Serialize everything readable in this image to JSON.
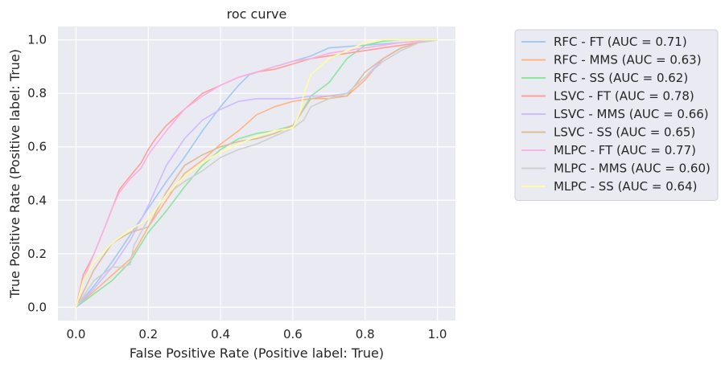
{
  "chart_data": {
    "type": "line",
    "title": "roc curve",
    "xlabel": "False Positive Rate (Positive label: True)",
    "ylabel": "True Positive Rate (Positive label: True)",
    "xlim": [
      -0.05,
      1.05
    ],
    "ylim": [
      -0.05,
      1.05
    ],
    "x_ticks": [
      0.0,
      0.2,
      0.4,
      0.6,
      0.8,
      1.0
    ],
    "y_ticks": [
      0.0,
      0.2,
      0.4,
      0.6,
      0.8,
      1.0
    ],
    "x_tick_labels": [
      "0.0",
      "0.2",
      "0.4",
      "0.6",
      "0.8",
      "1.0"
    ],
    "y_tick_labels": [
      "0.0",
      "0.2",
      "0.4",
      "0.6",
      "0.8",
      "1.0"
    ],
    "grid": true,
    "background": "#eaeaf2",
    "legend_position": "outside-right",
    "series": [
      {
        "name": "RFC - FT (AUC = 0.71)",
        "color": "#a1c9f4",
        "x": [
          0,
          0.05,
          0.1,
          0.15,
          0.2,
          0.25,
          0.3,
          0.35,
          0.4,
          0.45,
          0.48,
          0.55,
          0.6,
          0.65,
          0.7,
          0.8,
          0.9,
          1.0
        ],
        "y": [
          0,
          0.08,
          0.17,
          0.27,
          0.37,
          0.47,
          0.56,
          0.66,
          0.75,
          0.83,
          0.87,
          0.9,
          0.92,
          0.94,
          0.97,
          0.98,
          0.99,
          1.0
        ]
      },
      {
        "name": "RFC - MMS (AUC = 0.63)",
        "color": "#ffb482",
        "x": [
          0,
          0.05,
          0.1,
          0.15,
          0.2,
          0.25,
          0.3,
          0.35,
          0.4,
          0.45,
          0.5,
          0.55,
          0.6,
          0.65,
          0.7,
          0.75,
          0.8,
          0.85,
          0.9,
          0.95,
          1.0
        ],
        "y": [
          0,
          0.06,
          0.12,
          0.18,
          0.3,
          0.4,
          0.5,
          0.55,
          0.61,
          0.66,
          0.72,
          0.75,
          0.77,
          0.78,
          0.78,
          0.79,
          0.85,
          0.93,
          0.97,
          0.99,
          1.0
        ]
      },
      {
        "name": "RFC - SS (AUC = 0.62)",
        "color": "#8de5a1",
        "x": [
          0,
          0.05,
          0.1,
          0.15,
          0.2,
          0.25,
          0.3,
          0.35,
          0.4,
          0.45,
          0.5,
          0.55,
          0.6,
          0.62,
          0.65,
          0.7,
          0.75,
          0.8,
          0.85,
          0.9,
          1.0
        ],
        "y": [
          0,
          0.05,
          0.1,
          0.17,
          0.28,
          0.36,
          0.45,
          0.53,
          0.59,
          0.63,
          0.65,
          0.66,
          0.68,
          0.72,
          0.79,
          0.84,
          0.93,
          0.98,
          0.995,
          1.0,
          1.0
        ]
      },
      {
        "name": "LSVC - FT (AUC = 0.78)",
        "color": "#ff9f9b",
        "x": [
          0,
          0.02,
          0.05,
          0.08,
          0.1,
          0.12,
          0.15,
          0.18,
          0.2,
          0.22,
          0.25,
          0.3,
          0.35,
          0.4,
          0.45,
          0.5,
          0.55,
          0.6,
          0.65,
          0.7,
          0.75,
          0.8,
          0.85,
          0.9,
          0.95,
          1.0
        ],
        "y": [
          0,
          0.12,
          0.2,
          0.3,
          0.37,
          0.44,
          0.49,
          0.54,
          0.59,
          0.63,
          0.68,
          0.74,
          0.8,
          0.83,
          0.86,
          0.88,
          0.89,
          0.91,
          0.93,
          0.94,
          0.95,
          0.96,
          0.97,
          0.98,
          0.99,
          1.0
        ]
      },
      {
        "name": "LSVC - MMS (AUC = 0.66)",
        "color": "#d0bbff",
        "x": [
          0,
          0.05,
          0.1,
          0.15,
          0.2,
          0.22,
          0.25,
          0.3,
          0.35,
          0.4,
          0.45,
          0.5,
          0.55,
          0.6,
          0.65,
          0.7,
          0.75,
          0.8,
          0.85,
          0.9,
          0.95,
          1.0
        ],
        "y": [
          0,
          0.07,
          0.15,
          0.25,
          0.38,
          0.44,
          0.53,
          0.63,
          0.7,
          0.74,
          0.77,
          0.78,
          0.78,
          0.78,
          0.79,
          0.79,
          0.8,
          0.86,
          0.93,
          0.97,
          0.99,
          1.0
        ]
      },
      {
        "name": "LSVC - SS (AUC = 0.65)",
        "color": "#debb9b",
        "x": [
          0,
          0.05,
          0.1,
          0.15,
          0.2,
          0.25,
          0.3,
          0.35,
          0.4,
          0.45,
          0.5,
          0.55,
          0.6,
          0.62,
          0.65,
          0.7,
          0.75,
          0.8,
          0.85,
          0.9,
          0.95,
          1.0
        ],
        "y": [
          0,
          0.14,
          0.24,
          0.28,
          0.3,
          0.43,
          0.53,
          0.57,
          0.6,
          0.62,
          0.63,
          0.65,
          0.68,
          0.72,
          0.78,
          0.79,
          0.79,
          0.88,
          0.93,
          0.97,
          0.99,
          1.0
        ]
      },
      {
        "name": "MLPC - FT (AUC = 0.77)",
        "color": "#fab0e4",
        "x": [
          0,
          0.02,
          0.05,
          0.08,
          0.1,
          0.12,
          0.15,
          0.18,
          0.2,
          0.25,
          0.3,
          0.35,
          0.4,
          0.45,
          0.5,
          0.55,
          0.6,
          0.65,
          0.7,
          0.75,
          0.8,
          0.85,
          0.9,
          0.95,
          1.0
        ],
        "y": [
          0,
          0.1,
          0.2,
          0.3,
          0.37,
          0.43,
          0.48,
          0.52,
          0.57,
          0.66,
          0.74,
          0.79,
          0.83,
          0.86,
          0.88,
          0.9,
          0.92,
          0.93,
          0.95,
          0.96,
          0.97,
          0.98,
          0.99,
          0.995,
          1.0
        ]
      },
      {
        "name": "MLPC - MMS (AUC = 0.60)",
        "color": "#cfcfcf",
        "x": [
          0,
          0.05,
          0.1,
          0.13,
          0.15,
          0.16,
          0.2,
          0.25,
          0.3,
          0.35,
          0.4,
          0.45,
          0.5,
          0.55,
          0.6,
          0.63,
          0.65,
          0.7,
          0.75,
          0.8,
          0.85,
          0.9,
          0.95,
          1.0
        ],
        "y": [
          0,
          0.1,
          0.15,
          0.15,
          0.16,
          0.23,
          0.33,
          0.42,
          0.47,
          0.51,
          0.56,
          0.59,
          0.61,
          0.64,
          0.67,
          0.7,
          0.75,
          0.78,
          0.8,
          0.86,
          0.92,
          0.96,
          0.99,
          1.0
        ]
      },
      {
        "name": "MLPC - SS (AUC = 0.64)",
        "color": "#fffea3",
        "x": [
          0,
          0.02,
          0.05,
          0.1,
          0.15,
          0.2,
          0.25,
          0.3,
          0.35,
          0.4,
          0.45,
          0.5,
          0.55,
          0.6,
          0.62,
          0.63,
          0.65,
          0.7,
          0.75,
          0.8,
          0.85,
          0.9,
          1.0
        ],
        "y": [
          0,
          0.1,
          0.17,
          0.24,
          0.29,
          0.33,
          0.42,
          0.49,
          0.54,
          0.58,
          0.61,
          0.64,
          0.66,
          0.67,
          0.73,
          0.8,
          0.87,
          0.93,
          0.96,
          0.99,
          1.0,
          1.0,
          1.0
        ]
      }
    ]
  }
}
